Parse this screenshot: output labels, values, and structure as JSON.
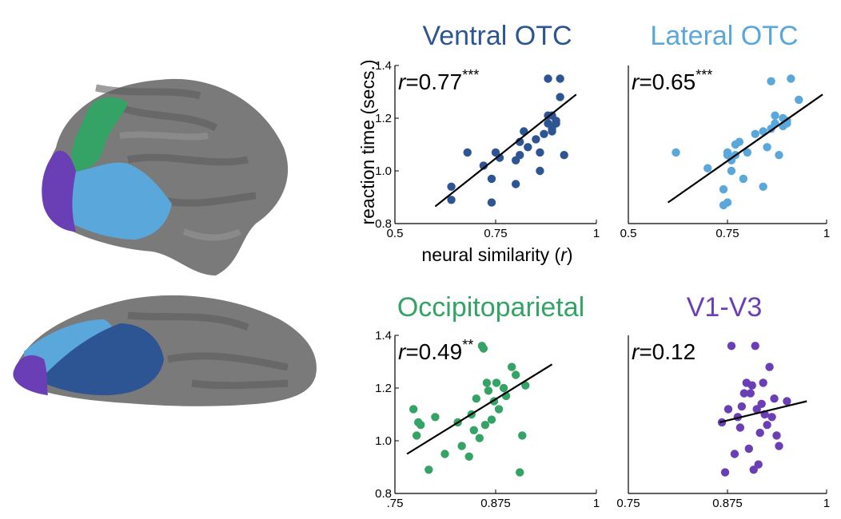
{
  "colors": {
    "ventral": "#2e5593",
    "lateral": "#5aa7dc",
    "occipito": "#35a365",
    "v1v3": "#6a3fb6",
    "brain_base": "#777777"
  },
  "shared_labels": {
    "ylabel": "reaction time (secs.)",
    "xlabel_main": "neural similarity (",
    "xlabel_r": "r",
    "xlabel_close": ")"
  },
  "chart_data": [
    {
      "type": "scatter",
      "title": "Ventral OTC",
      "color_key": "ventral",
      "stat": {
        "r_letter": "r",
        "value": "=0.77",
        "stars": "***"
      },
      "xlim": [
        0.5,
        1.0
      ],
      "ylim": [
        0.8,
        1.4
      ],
      "xticks": [
        "0.5",
        "0.75",
        "1"
      ],
      "xtick_values": [
        0.5,
        0.75,
        1.0
      ],
      "yticks": [
        "0.8",
        "1.0",
        "1.2",
        "1.4"
      ],
      "ytick_values": [
        0.8,
        1.0,
        1.2,
        1.4
      ],
      "fit": {
        "x": [
          0.6,
          0.95
        ],
        "y": [
          0.865,
          1.29
        ]
      },
      "points": {
        "x": [
          0.64,
          0.64,
          0.68,
          0.72,
          0.74,
          0.74,
          0.75,
          0.76,
          0.8,
          0.8,
          0.81,
          0.81,
          0.82,
          0.83,
          0.85,
          0.86,
          0.86,
          0.87,
          0.88,
          0.88,
          0.88,
          0.89,
          0.89,
          0.89,
          0.9,
          0.9,
          0.91,
          0.91,
          0.92
        ],
        "y": [
          0.94,
          0.89,
          1.07,
          1.02,
          0.97,
          0.88,
          1.07,
          1.05,
          0.95,
          1.04,
          1.06,
          1.11,
          1.15,
          1.09,
          1.12,
          1.0,
          1.07,
          1.14,
          1.21,
          1.18,
          1.35,
          1.15,
          1.16,
          1.21,
          1.19,
          1.18,
          1.28,
          1.35,
          1.06
        ]
      }
    },
    {
      "type": "scatter",
      "title": "Lateral OTC",
      "color_key": "lateral",
      "stat": {
        "r_letter": "r",
        "value": "=0.65",
        "stars": "***"
      },
      "xlim": [
        0.5,
        1.0
      ],
      "ylim": [
        0.8,
        1.4
      ],
      "xticks": [
        "0.5",
        "0.75",
        "1"
      ],
      "xtick_values": [
        0.5,
        0.75,
        1.0
      ],
      "yticks": [],
      "ytick_values": [],
      "fit": {
        "x": [
          0.6,
          0.99
        ],
        "y": [
          0.88,
          1.29
        ]
      },
      "points": {
        "x": [
          0.62,
          0.7,
          0.74,
          0.74,
          0.75,
          0.75,
          0.75,
          0.76,
          0.76,
          0.77,
          0.77,
          0.78,
          0.79,
          0.8,
          0.82,
          0.84,
          0.84,
          0.86,
          0.86,
          0.87,
          0.87,
          0.88,
          0.89,
          0.89,
          0.9,
          0.9,
          0.91,
          0.93,
          0.85
        ],
        "y": [
          1.07,
          1.01,
          0.87,
          0.93,
          1.06,
          1.07,
          0.88,
          1.04,
          1.0,
          1.06,
          1.1,
          1.11,
          0.97,
          1.07,
          1.14,
          1.15,
          0.94,
          1.16,
          1.34,
          1.18,
          1.21,
          1.06,
          1.2,
          1.17,
          1.18,
          1.19,
          1.35,
          1.27,
          1.09
        ]
      }
    },
    {
      "type": "scatter",
      "title": "Occipitoparietal",
      "color_key": "occipito",
      "stat": {
        "r_letter": "r",
        "value": "=0.49",
        "stars": "**"
      },
      "xlim": [
        0.75,
        1.0
      ],
      "ylim": [
        0.8,
        1.4
      ],
      "xticks": [
        ".75",
        "0.875",
        "1"
      ],
      "xtick_values": [
        0.75,
        0.875,
        1.0
      ],
      "yticks": [
        "0.8",
        "1.0",
        "1.2",
        "1.4"
      ],
      "ytick_values": [
        0.8,
        1.0,
        1.2,
        1.4
      ],
      "fit": {
        "x": [
          0.765,
          0.945
        ],
        "y": [
          0.95,
          1.29
        ]
      },
      "points": {
        "x": [
          0.773,
          0.777,
          0.779,
          0.782,
          0.792,
          0.8,
          0.812,
          0.828,
          0.833,
          0.842,
          0.845,
          0.848,
          0.851,
          0.855,
          0.858,
          0.86,
          0.862,
          0.864,
          0.866,
          0.87,
          0.873,
          0.876,
          0.879,
          0.885,
          0.888,
          0.895,
          0.9,
          0.905,
          0.908,
          0.912
        ],
        "y": [
          1.12,
          1.02,
          1.07,
          1.06,
          0.89,
          1.09,
          0.95,
          1.07,
          0.98,
          0.94,
          1.1,
          1.04,
          1.16,
          1.01,
          1.36,
          1.35,
          1.06,
          1.22,
          1.19,
          1.08,
          1.15,
          1.22,
          1.12,
          1.2,
          1.17,
          1.28,
          1.25,
          0.88,
          1.02,
          1.21
        ]
      }
    },
    {
      "type": "scatter",
      "title": "V1-V3",
      "color_key": "v1v3",
      "stat": {
        "r_letter": "r",
        "value": "=0.12",
        "stars": ""
      },
      "xlim": [
        0.75,
        1.0
      ],
      "ylim": [
        0.8,
        1.4
      ],
      "xticks": [
        "0.75",
        "0.875",
        "1"
      ],
      "xtick_values": [
        0.75,
        0.875,
        1.0
      ],
      "yticks": [],
      "ytick_values": [],
      "fit": {
        "x": [
          0.865,
          0.975
        ],
        "y": [
          1.07,
          1.15
        ]
      },
      "points": {
        "x": [
          0.868,
          0.872,
          0.876,
          0.88,
          0.884,
          0.888,
          0.891,
          0.893,
          0.896,
          0.899,
          0.902,
          0.904,
          0.906,
          0.908,
          0.91,
          0.912,
          0.914,
          0.916,
          0.918,
          0.92,
          0.922,
          0.925,
          0.928,
          0.931,
          0.934,
          0.937,
          0.94,
          0.95
        ],
        "y": [
          1.07,
          0.88,
          1.12,
          1.36,
          0.95,
          1.09,
          1.05,
          1.13,
          1.18,
          1.22,
          0.97,
          1.18,
          1.21,
          0.89,
          1.36,
          1.12,
          0.91,
          1.03,
          1.14,
          1.22,
          1.1,
          1.06,
          1.28,
          1.09,
          1.16,
          1.02,
          0.98,
          1.15
        ]
      }
    }
  ]
}
